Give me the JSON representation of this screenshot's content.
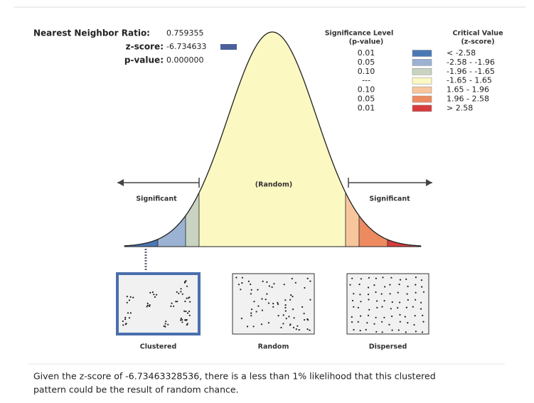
{
  "stats": {
    "ratio": {
      "label": "Nearest Neighbor Ratio:",
      "value": "0.759355"
    },
    "zscore": {
      "label": "z-score:",
      "value": "-6.734633"
    },
    "pvalue": {
      "label": "p-value:",
      "value": "0.000000"
    }
  },
  "legend": {
    "significance_header": "Significance Level",
    "significance_sub": "(p-value)",
    "critical_header": "Critical Value",
    "critical_sub": "(z-score)",
    "rows": [
      {
        "p": "0.01",
        "color": "#4a78b5",
        "range": "< -2.58"
      },
      {
        "p": "0.05",
        "color": "#9bb2d3",
        "range": "-2.58 - -1.96"
      },
      {
        "p": "0.10",
        "color": "#c9d3c1",
        "range": "-1.96 - -1.65"
      },
      {
        "p": "---",
        "color": "#fbf8c2",
        "range": "-1.65 - 1.65"
      },
      {
        "p": "0.10",
        "color": "#f8c69d",
        "range": "1.65 - 1.96"
      },
      {
        "p": "0.05",
        "color": "#ee8a60",
        "range": "1.96 - 2.58"
      },
      {
        "p": "0.01",
        "color": "#d83c3c",
        "range": "> 2.58"
      }
    ]
  },
  "curve": {
    "left_label": "Significant",
    "center_label": "(Random)",
    "right_label": "Significant"
  },
  "patterns": [
    "Clustered",
    "Random",
    "Dispersed"
  ],
  "message": [
    "Given the z-score of -6.73463328536, there is a less than 1% likelihood that this clustered",
    "pattern could be the result of random chance."
  ]
}
